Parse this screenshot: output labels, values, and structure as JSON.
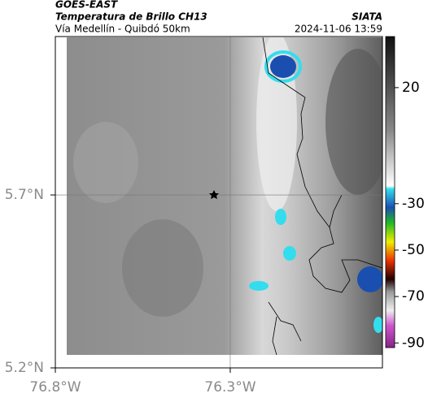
{
  "header": {
    "source": "GOES-EAST",
    "product": "Temperatura de Brillo CH13",
    "organization": "SIATA",
    "region": "Vía Medellín - Quibdó 50km",
    "timestamp": "2024-11-06 13:59"
  },
  "map": {
    "latlim": [
      5.2,
      6.158
    ],
    "lonlim": [
      -76.8,
      -75.865
    ],
    "lat_ticks": [
      {
        "value": 5.7,
        "label": "5.7°N"
      },
      {
        "value": 5.2,
        "label": "5.2°N"
      }
    ],
    "lon_ticks": [
      {
        "value": -76.8,
        "label": "76.8°W"
      },
      {
        "value": -76.3,
        "label": "76.3°W"
      }
    ],
    "grid": true
  },
  "colorbar": {
    "clim": [
      -92,
      42
    ],
    "ticks": [
      20,
      -30,
      -50,
      -70,
      -90
    ]
  }
}
